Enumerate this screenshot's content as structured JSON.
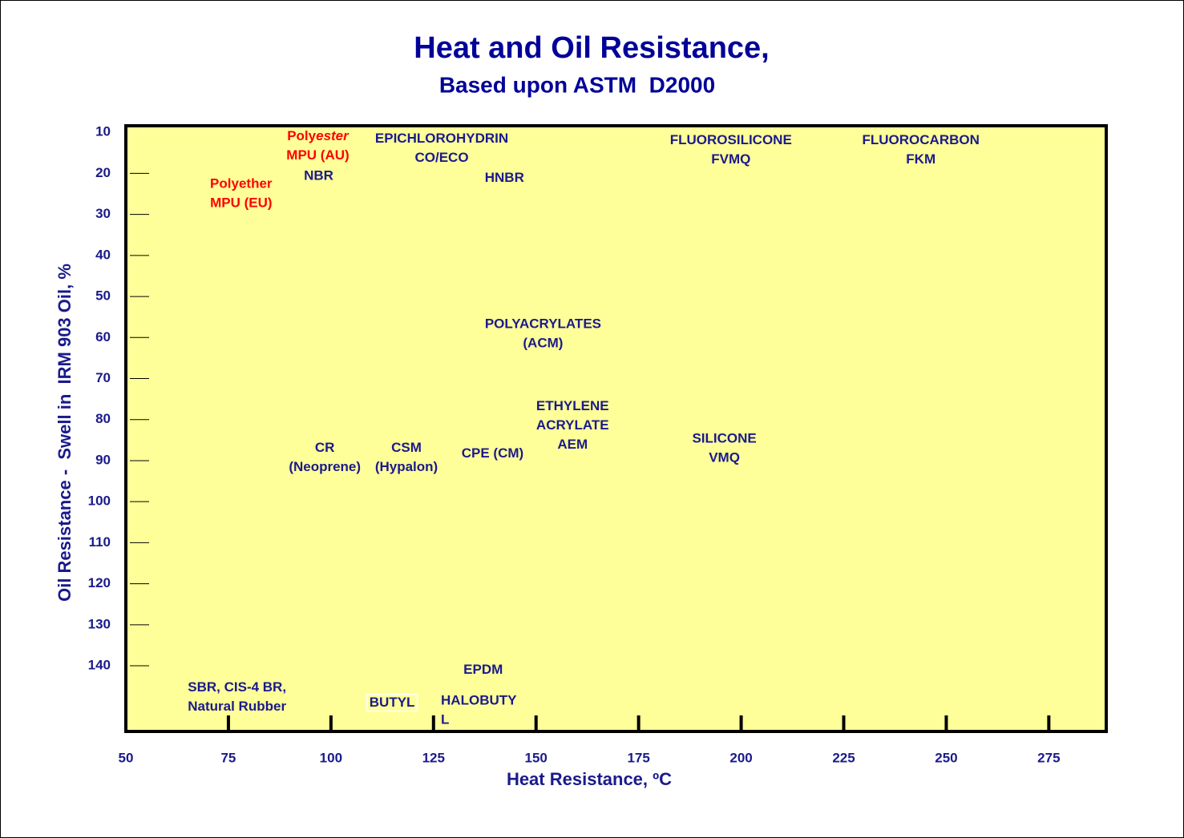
{
  "chart_data": {
    "type": "label-map",
    "title": "Heat and Oil Resistance,",
    "subtitle": "Based upon ASTM  D2000",
    "x_label": "Heat Resistance, ºC",
    "y_label": "Oil Resistance -  Swell in  IRM 903 Oil, %",
    "xlim": [
      50,
      289
    ],
    "xticks": [
      50,
      75,
      100,
      125,
      150,
      175,
      200,
      225,
      250,
      275
    ],
    "ylim": [
      8.4,
      156
    ],
    "y_inverted": true,
    "yticks": [
      10,
      20,
      30,
      40,
      50,
      60,
      70,
      80,
      90,
      100,
      110,
      120,
      130,
      140
    ],
    "background": "#ffff99",
    "text_color": "#1a1a8c",
    "materials": [
      {
        "lines": [
          [
            {
              "text": "Poly"
            },
            {
              "text": "ester",
              "italic": true
            }
          ],
          [
            {
              "text": "MPU (AU)"
            }
          ]
        ],
        "x": 96.8,
        "y": 13.5,
        "color": "#ff0000"
      },
      {
        "lines": [
          [
            {
              "text": "Polyether"
            }
          ],
          [
            {
              "text": "MPU (EU)"
            }
          ]
        ],
        "x": 78.1,
        "y": 25.1,
        "color": "#ff0000"
      },
      {
        "lines": [
          [
            {
              "text": "NBR"
            }
          ]
        ],
        "x": 97,
        "y": 20.8
      },
      {
        "lines": [
          [
            {
              "text": "EPICHLOROHYDRIN"
            }
          ],
          [
            {
              "text": "CO/ECO"
            }
          ]
        ],
        "x": 127,
        "y": 14.1
      },
      {
        "lines": [
          [
            {
              "text": "HNBR"
            }
          ]
        ],
        "x": 142.3,
        "y": 21.3
      },
      {
        "lines": [
          [
            {
              "text": "FLUOROSILICONE"
            }
          ],
          [
            {
              "text": "FVMQ"
            }
          ]
        ],
        "x": 197.5,
        "y": 14.5
      },
      {
        "lines": [
          [
            {
              "text": "FLUOROCARBON"
            }
          ],
          [
            {
              "text": "FKM"
            }
          ]
        ],
        "x": 243.8,
        "y": 14.5
      },
      {
        "lines": [
          [
            {
              "text": "POLYACRYLATES"
            }
          ],
          [
            {
              "text": "(ACM)"
            }
          ]
        ],
        "x": 151.7,
        "y": 59.3
      },
      {
        "lines": [
          [
            {
              "text": "ETHYLENE"
            }
          ],
          [
            {
              "text": "ACRYLATE"
            }
          ],
          [
            {
              "text": "AEM"
            }
          ]
        ],
        "x": 158.9,
        "y": 81.6
      },
      {
        "lines": [
          [
            {
              "text": "SILICONE"
            }
          ],
          [
            {
              "text": "VMQ"
            }
          ]
        ],
        "x": 195.9,
        "y": 87.2
      },
      {
        "lines": [
          [
            {
              "text": "CR"
            }
          ],
          [
            {
              "text": "(Neoprene)"
            }
          ]
        ],
        "x": 98.5,
        "y": 89.4
      },
      {
        "lines": [
          [
            {
              "text": "CSM"
            }
          ],
          [
            {
              "text": "(Hypalon)"
            }
          ]
        ],
        "x": 118.4,
        "y": 89.4
      },
      {
        "lines": [
          [
            {
              "text": "CPE (CM)"
            }
          ]
        ],
        "x": 139.4,
        "y": 88.4
      },
      {
        "lines": [
          [
            {
              "text": "EPDM"
            }
          ]
        ],
        "x": 137.1,
        "y": 141.2
      },
      {
        "lines": [
          [
            {
              "text": "SBR, CIS-4 BR,"
            }
          ],
          [
            {
              "text": "Natural Rubber"
            }
          ]
        ],
        "x": 77.1,
        "y": 147.8
      },
      {
        "lines": [
          [
            {
              "text": "BUTYL"
            }
          ]
        ],
        "x": 114.9,
        "y": 149.2,
        "boxed": true
      },
      {
        "lines": [
          [
            {
              "text": "HALOBUTY"
            }
          ],
          [
            {
              "text": "L"
            }
          ]
        ],
        "x": 136.1,
        "y": 151,
        "align": "left"
      }
    ]
  }
}
